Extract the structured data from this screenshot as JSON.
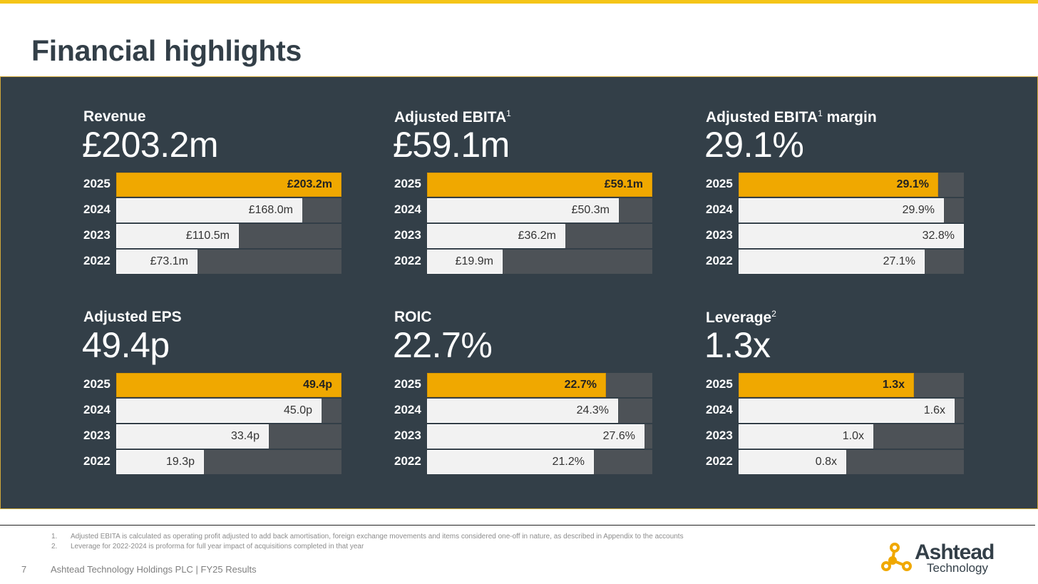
{
  "page": {
    "title": "Financial highlights",
    "page_number": "7",
    "footer": "Ashtead Technology Holdings PLC | FY25 Results"
  },
  "colors": {
    "accent": "#f0a800",
    "panel": "#333f48",
    "track": "#4d5257",
    "bar": "#f2f2f2",
    "topbar": "#f5c518"
  },
  "chart_data": [
    {
      "type": "bar",
      "orientation": "horizontal",
      "title": "Revenue",
      "title_sup": "",
      "title_suffix": "",
      "headline": "£203.2m",
      "categories": [
        "2025",
        "2024",
        "2023",
        "2022"
      ],
      "values": [
        203.2,
        168.0,
        110.5,
        73.1
      ],
      "labels": [
        "£203.2m",
        "£168.0m",
        "£110.5m",
        "£73.1m"
      ],
      "xlim": [
        0,
        203.2
      ]
    },
    {
      "type": "bar",
      "orientation": "horizontal",
      "title": "Adjusted EBITA",
      "title_sup": "1",
      "title_suffix": "",
      "headline": "£59.1m",
      "categories": [
        "2025",
        "2024",
        "2023",
        "2022"
      ],
      "values": [
        59.1,
        50.3,
        36.2,
        19.9
      ],
      "labels": [
        "£59.1m",
        "£50.3m",
        "£36.2m",
        "£19.9m"
      ],
      "xlim": [
        0,
        59.1
      ]
    },
    {
      "type": "bar",
      "orientation": "horizontal",
      "title": "Adjusted EBITA",
      "title_sup": "1",
      "title_suffix": " margin",
      "headline": "29.1%",
      "categories": [
        "2025",
        "2024",
        "2023",
        "2022"
      ],
      "values": [
        29.1,
        29.9,
        32.8,
        27.1
      ],
      "labels": [
        "29.1%",
        "29.9%",
        "32.8%",
        "27.1%"
      ],
      "xlim": [
        0,
        32.8
      ]
    },
    {
      "type": "bar",
      "orientation": "horizontal",
      "title": "Adjusted EPS",
      "title_sup": "",
      "title_suffix": "",
      "headline": "49.4p",
      "categories": [
        "2025",
        "2024",
        "2023",
        "2022"
      ],
      "values": [
        49.4,
        45.0,
        33.4,
        19.3
      ],
      "labels": [
        "49.4p",
        "45.0p",
        "33.4p",
        "19.3p"
      ],
      "xlim": [
        0,
        49.4
      ]
    },
    {
      "type": "bar",
      "orientation": "horizontal",
      "title": "ROIC",
      "title_sup": "",
      "title_suffix": "",
      "headline": "22.7%",
      "categories": [
        "2025",
        "2024",
        "2023",
        "2022"
      ],
      "values": [
        22.7,
        24.3,
        27.6,
        21.2
      ],
      "labels": [
        "22.7%",
        "24.3%",
        "27.6%",
        "21.2%"
      ],
      "xlim": [
        0,
        28.6
      ]
    },
    {
      "type": "bar",
      "orientation": "horizontal",
      "title": "Leverage",
      "title_sup": "2",
      "title_suffix": "",
      "headline": "1.3x",
      "categories": [
        "2025",
        "2024",
        "2023",
        "2022"
      ],
      "values": [
        1.3,
        1.6,
        1.0,
        0.8
      ],
      "labels": [
        "1.3x",
        "1.6x",
        "1.0x",
        "0.8x"
      ],
      "xlim": [
        0,
        1.67
      ]
    }
  ],
  "footnotes": [
    {
      "num": "1.",
      "text": "Adjusted EBITA is calculated as operating profit adjusted to add back amortisation, foreign exchange movements and items considered one-off in nature, as described in Appendix to the accounts"
    },
    {
      "num": "2.",
      "text": "Leverage for 2022-2024 is proforma for full year impact of acquisitions completed in that year"
    }
  ],
  "logo": {
    "name": "Ashtead",
    "sub": "Technology",
    "mark": "ashtead-molecule-icon"
  }
}
